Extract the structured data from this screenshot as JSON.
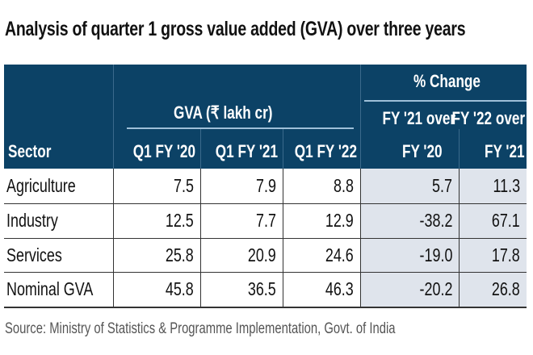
{
  "title": "Analysis of quarter 1 gross value added (GVA) over three years",
  "chart_data": {
    "type": "table",
    "title": "Analysis of quarter 1 gross value added (GVA) over three years",
    "group_headers": {
      "gva": "GVA (₹ lakh cr)",
      "pct": "% Change"
    },
    "columns": [
      "Sector",
      "Q1 FY '20",
      "Q1 FY '21",
      "Q1 FY '22"
    ],
    "pct_columns": [
      {
        "top": "FY '21 over",
        "bottom": "FY '20"
      },
      {
        "top": "FY '22 over",
        "bottom": "FY '21"
      }
    ],
    "rows": [
      {
        "sector": "Agriculture",
        "values": [
          "7.5",
          "7.9",
          "8.8",
          "5.7",
          "11.3"
        ]
      },
      {
        "sector": "Industry",
        "values": [
          "12.5",
          "7.7",
          "12.9",
          "-38.2",
          "67.1"
        ]
      },
      {
        "sector": "Services",
        "values": [
          "25.8",
          "20.9",
          "24.6",
          "-19.0",
          "17.8"
        ]
      },
      {
        "sector": "Nominal GVA",
        "values": [
          "45.8",
          "36.5",
          "46.3",
          "-20.2",
          "26.8"
        ]
      }
    ],
    "source": "Source: Ministry of Statistics & Programme Implementation, Govt. of India",
    "colors": {
      "header": "#0c4266",
      "pct_bg": "#dfe4ec"
    }
  }
}
